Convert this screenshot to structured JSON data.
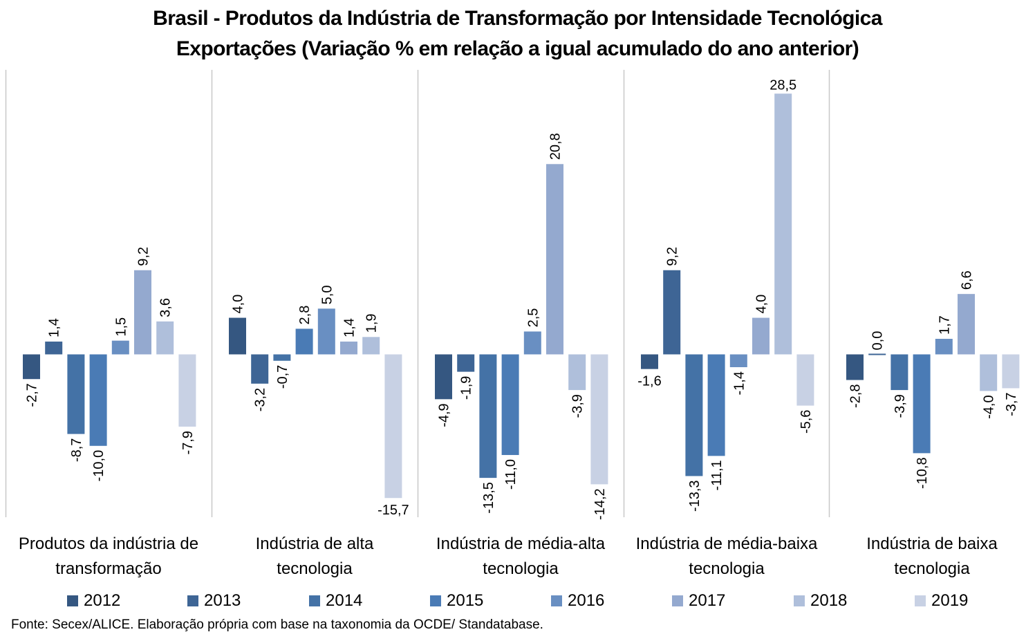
{
  "chart_data": {
    "type": "bar",
    "title": "Brasil - Produtos da Indústria de Transformação por Intensidade Tecnológica",
    "subtitle": "Exportações (Variação % em relação a igual acumulado do ano anterior)",
    "xlabel": "",
    "ylabel": "",
    "ylim": [
      -17.8,
      31.1
    ],
    "grid": false,
    "legend_position": "bottom",
    "categories": [
      [
        "Produtos da indústria de",
        "transformação"
      ],
      [
        "Indústria de alta",
        "tecnologia"
      ],
      [
        "Indústria de média-alta",
        "tecnologia"
      ],
      [
        "Indústria de média-baixa",
        "tecnologia"
      ],
      [
        "Indústria de baixa",
        "tecnologia"
      ]
    ],
    "series": [
      {
        "name": "2012",
        "color": "#355781",
        "values": [
          -2.7,
          4.0,
          -4.9,
          -1.6,
          -2.8
        ],
        "labels": [
          "-2,7",
          "4,0",
          "-4,9",
          "-1,6",
          "-2,8"
        ]
      },
      {
        "name": "2013",
        "color": "#3e6595",
        "values": [
          1.4,
          -3.2,
          -1.9,
          9.2,
          0.0
        ],
        "labels": [
          "1,4",
          "-3,2",
          "-1,9",
          "9,2",
          "0,0"
        ]
      },
      {
        "name": "2014",
        "color": "#4472a6",
        "values": [
          -8.7,
          -0.7,
          -13.5,
          -13.3,
          -3.9
        ],
        "labels": [
          "-8,7",
          "-0,7",
          "-13,5",
          "-13,3",
          "-3,9"
        ]
      },
      {
        "name": "2015",
        "color": "#4a7bb5",
        "values": [
          -10.0,
          2.8,
          -11.0,
          -11.1,
          -10.8
        ],
        "labels": [
          "-10,0",
          "2,8",
          "-11,0",
          "-11,1",
          "-10,8"
        ]
      },
      {
        "name": "2016",
        "color": "#698fc2",
        "values": [
          1.5,
          5.0,
          2.5,
          -1.4,
          1.7
        ],
        "labels": [
          "1,5",
          "5,0",
          "2,5",
          "-1,4",
          "1,7"
        ]
      },
      {
        "name": "2017",
        "color": "#94a9cf",
        "values": [
          9.2,
          1.4,
          20.8,
          4.0,
          6.6
        ],
        "labels": [
          "9,2",
          "1,4",
          "20,8",
          "4,0",
          "6,6"
        ]
      },
      {
        "name": "2018",
        "color": "#afbfdb",
        "values": [
          3.6,
          1.9,
          -3.9,
          28.5,
          -4.0
        ],
        "labels": [
          "3,6",
          "1,9",
          "-3,9",
          "28,5",
          "-4,0"
        ]
      },
      {
        "name": "2019",
        "color": "#c8d1e4",
        "values": [
          -7.9,
          -15.7,
          -14.2,
          -5.6,
          -3.7
        ],
        "labels": [
          "-7,9",
          "-15,7",
          "-14,2",
          "-5,6",
          "-3,7"
        ]
      }
    ],
    "horizontal_labels": {
      "0-0": false,
      "1-7": true,
      "3-0": true,
      "3-6": true
    }
  },
  "source": "Fonte: Secex/ALICE. Elaboração própria com base na taxonomia da OCDE/ Standatabase."
}
